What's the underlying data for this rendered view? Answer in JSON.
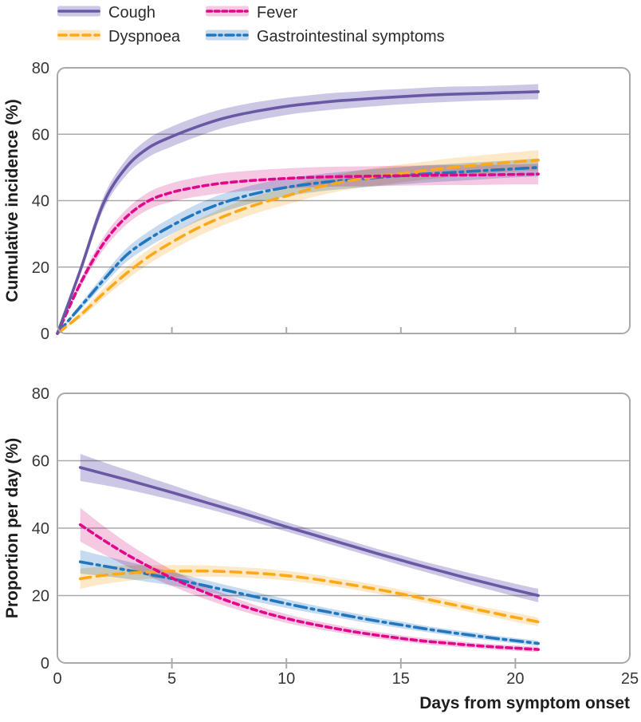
{
  "legend": {
    "items": [
      {
        "label": "Cough",
        "series": "cough"
      },
      {
        "label": "Fever",
        "series": "fever"
      },
      {
        "label": "Dyspnoea",
        "series": "dyspnoea"
      },
      {
        "label": "Gastrointestinal symptoms",
        "series": "gi"
      }
    ]
  },
  "palette": {
    "grid": "#ABABAB",
    "border": "#A9A9A9",
    "tick_text": "#363636",
    "title_text": "#1D1D1D",
    "series": {
      "cough": {
        "line": "#6A58A5",
        "band": "#CDC7E6"
      },
      "fever": {
        "line": "#E2068C",
        "band": "#F5C9E1"
      },
      "dyspnoea": {
        "line": "#FBA919",
        "band": "#FDE9C8"
      },
      "gi": {
        "line": "#2177BD",
        "band": "#C6DAF0"
      }
    }
  },
  "chart_data": [
    {
      "type": "line",
      "title": "",
      "ylabel": "Cumulative incidence (%)",
      "xlabel": "",
      "xlim": [
        0,
        25
      ],
      "ylim": [
        0,
        80
      ],
      "xticks": [
        0,
        5,
        10,
        15,
        20,
        25
      ],
      "yticks": [
        0,
        20,
        40,
        60,
        80
      ],
      "x_tick_labels_visible": false,
      "grid": "horizontal",
      "x": [
        0,
        1,
        2,
        3,
        4,
        5,
        6,
        7,
        8,
        9,
        10,
        11,
        12,
        13,
        14,
        15,
        16,
        17,
        18,
        19,
        20,
        21
      ],
      "series": [
        {
          "name": "Cough",
          "key": "cough",
          "style": "solid",
          "values": [
            0,
            19,
            39,
            50,
            56,
            59.3,
            62,
            64.3,
            66,
            67.3,
            68.4,
            69.2,
            69.9,
            70.4,
            70.9,
            71.3,
            71.7,
            72,
            72.2,
            72.4,
            72.6,
            72.8
          ],
          "ci_halfwidth": [
            0,
            1.2,
            1.9,
            2.4,
            2.8,
            3,
            3,
            2.9,
            2.8,
            2.7,
            2.6,
            2.5,
            2.5,
            2.4,
            2.4,
            2.3,
            2.3,
            2.3,
            2.2,
            2.2,
            2.2,
            2.3
          ]
        },
        {
          "name": "Fever",
          "key": "fever",
          "style": "short-dash",
          "values": [
            0,
            15,
            27,
            35,
            40,
            42.5,
            44,
            45.1,
            45.8,
            46.3,
            46.7,
            47,
            47.2,
            47.3,
            47.4,
            47.5,
            47.6,
            47.7,
            47.7,
            47.8,
            47.9,
            48
          ],
          "ci_halfwidth": [
            0,
            1.2,
            1.9,
            2.3,
            2.6,
            2.8,
            2.9,
            3,
            3,
            3,
            3,
            3,
            3,
            3,
            3,
            3,
            3,
            3,
            3,
            3,
            3,
            3.1
          ]
        },
        {
          "name": "Dyspnoea",
          "key": "dyspnoea",
          "style": "long-dash",
          "values": [
            0,
            5.5,
            12,
            18,
            23.2,
            27.5,
            31.3,
            34.5,
            37.2,
            39.5,
            41.4,
            43.4,
            45,
            46.3,
            47.3,
            48.2,
            49,
            49.8,
            50.5,
            51.1,
            51.7,
            52.2
          ],
          "ci_halfwidth": [
            0,
            0.9,
            1.5,
            1.9,
            2.2,
            2.4,
            2.5,
            2.6,
            2.6,
            2.6,
            2.6,
            2.6,
            2.6,
            2.6,
            2.7,
            2.7,
            2.7,
            2.8,
            2.8,
            2.9,
            2.9,
            3
          ]
        },
        {
          "name": "Gastrointestinal symptoms",
          "key": "gi",
          "style": "dash-dot",
          "values": [
            0,
            8,
            16,
            23.5,
            28.5,
            32.5,
            36,
            38.8,
            41,
            42.7,
            44,
            45,
            45.8,
            46.4,
            47,
            47.5,
            48,
            48.4,
            48.8,
            49.2,
            49.6,
            50
          ],
          "ci_halfwidth": [
            0,
            0.9,
            1.5,
            2,
            2.3,
            2.5,
            2.6,
            2.7,
            2.7,
            2.7,
            2.7,
            2.6,
            2.6,
            2.6,
            2.6,
            2.6,
            2.6,
            2.6,
            2.6,
            2.6,
            2.6,
            2.7
          ]
        }
      ]
    },
    {
      "type": "line",
      "title": "",
      "ylabel": "Proportion per day (%)",
      "xlabel": "Days from symptom onset",
      "xlim": [
        0,
        25
      ],
      "ylim": [
        0,
        80
      ],
      "xticks": [
        0,
        5,
        10,
        15,
        20,
        25
      ],
      "yticks": [
        0,
        20,
        40,
        60,
        80
      ],
      "x_tick_labels_visible": true,
      "grid": "horizontal",
      "x": [
        1,
        2,
        3,
        4,
        5,
        6,
        7,
        8,
        9,
        10,
        11,
        12,
        13,
        14,
        15,
        16,
        17,
        18,
        19,
        20,
        21
      ],
      "series": [
        {
          "name": "Cough",
          "key": "cough",
          "style": "solid",
          "values": [
            58,
            56.2,
            54.4,
            52.5,
            50.6,
            48.6,
            46.6,
            44.6,
            42.5,
            40.4,
            38.4,
            36.4,
            34.4,
            32.4,
            30.5,
            28.6,
            26.8,
            25,
            23.3,
            21.6,
            20
          ],
          "ci_halfwidth": [
            4,
            3.4,
            2.9,
            2.5,
            2.2,
            1.9,
            1.7,
            1.6,
            1.5,
            1.4,
            1.4,
            1.4,
            1.4,
            1.4,
            1.5,
            1.5,
            1.6,
            1.7,
            1.8,
            1.9,
            2
          ]
        },
        {
          "name": "Fever",
          "key": "fever",
          "style": "short-dash",
          "values": [
            41,
            36.5,
            32.3,
            28.6,
            25.2,
            22.2,
            19.5,
            17.1,
            15,
            13.2,
            11.7,
            10.4,
            9.2,
            8.2,
            7.3,
            6.5,
            5.9,
            5.3,
            4.8,
            4.4,
            4
          ],
          "ci_halfwidth": [
            5,
            4.2,
            3.5,
            2.9,
            2.4,
            2.1,
            1.8,
            1.6,
            1.4,
            1.3,
            1.2,
            1.1,
            1,
            1,
            0.9,
            0.9,
            0.9,
            0.8,
            0.8,
            0.8,
            0.8
          ]
        },
        {
          "name": "Dyspnoea",
          "key": "dyspnoea",
          "style": "long-dash",
          "values": [
            25,
            26,
            26.6,
            27,
            27.2,
            27.3,
            27.2,
            26.9,
            26.5,
            25.9,
            25.1,
            24.1,
            23,
            21.8,
            20.5,
            19.1,
            17.7,
            16.3,
            14.9,
            13.5,
            12.2
          ],
          "ci_halfwidth": [
            3,
            2.6,
            2.3,
            2,
            1.8,
            1.7,
            1.6,
            1.5,
            1.5,
            1.4,
            1.4,
            1.3,
            1.3,
            1.3,
            1.2,
            1.2,
            1.2,
            1.2,
            1.2,
            1.3,
            1.3
          ]
        },
        {
          "name": "Gastrointestinal symptoms",
          "key": "gi",
          "style": "dash-dot",
          "values": [
            30,
            28.8,
            27.6,
            26.3,
            25,
            23.6,
            22.1,
            20.6,
            19.1,
            17.6,
            16.2,
            14.9,
            13.6,
            12.4,
            11.3,
            10.2,
            9.2,
            8.3,
            7.4,
            6.6,
            5.8
          ],
          "ci_halfwidth": [
            3.5,
            3,
            2.6,
            2.3,
            2,
            1.8,
            1.6,
            1.5,
            1.4,
            1.3,
            1.2,
            1.1,
            1.1,
            1,
            1,
            0.9,
            0.9,
            0.9,
            0.8,
            0.8,
            0.8
          ]
        }
      ]
    }
  ]
}
